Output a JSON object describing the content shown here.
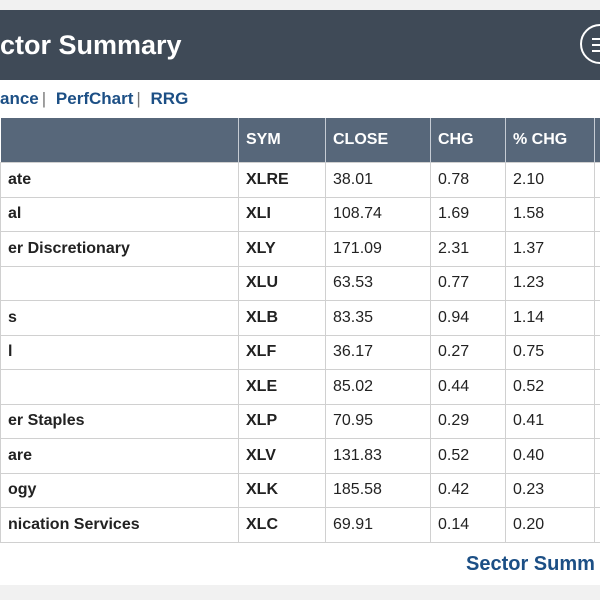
{
  "header": {
    "title": "ctor Summary",
    "menu_icon": "menu-icon"
  },
  "links": [
    "ance",
    "PerfChart",
    "RRG"
  ],
  "table": {
    "columns": [
      "",
      "SYM",
      "CLOSE",
      "CHG",
      "% CHG",
      ""
    ],
    "rows": [
      {
        "sector": "ate",
        "sym": "XLRE",
        "close": "38.01",
        "chg": "0.78",
        "pct": "2.10"
      },
      {
        "sector": "al",
        "sym": "XLI",
        "close": "108.74",
        "chg": "1.69",
        "pct": "1.58"
      },
      {
        "sector": "er Discretionary",
        "sym": "XLY",
        "close": "171.09",
        "chg": "2.31",
        "pct": "1.37"
      },
      {
        "sector": "",
        "sym": "XLU",
        "close": "63.53",
        "chg": "0.77",
        "pct": "1.23"
      },
      {
        "sector": "s",
        "sym": "XLB",
        "close": "83.35",
        "chg": "0.94",
        "pct": "1.14"
      },
      {
        "sector": "l",
        "sym": "XLF",
        "close": "36.17",
        "chg": "0.27",
        "pct": "0.75"
      },
      {
        "sector": "",
        "sym": "XLE",
        "close": "85.02",
        "chg": "0.44",
        "pct": "0.52"
      },
      {
        "sector": "er Staples",
        "sym": "XLP",
        "close": "70.95",
        "chg": "0.29",
        "pct": "0.41"
      },
      {
        "sector": "are",
        "sym": "XLV",
        "close": "131.83",
        "chg": "0.52",
        "pct": "0.40"
      },
      {
        "sector": "ogy",
        "sym": "XLK",
        "close": "185.58",
        "chg": "0.42",
        "pct": "0.23"
      },
      {
        "sector": "nication Services",
        "sym": "XLC",
        "close": "69.91",
        "chg": "0.14",
        "pct": "0.20"
      }
    ]
  },
  "footer": {
    "link": "Sector Summ"
  }
}
